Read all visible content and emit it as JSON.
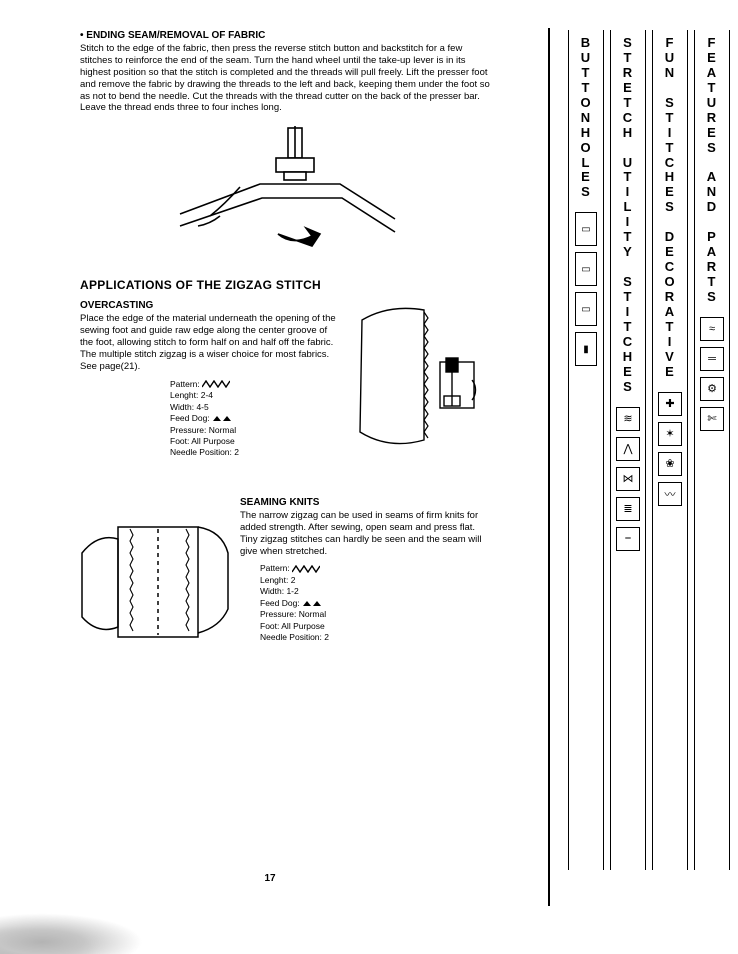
{
  "endingSeam": {
    "heading": "ENDING SEAM/REMOVAL OF FABRIC",
    "body": "Stitch to the edge of the fabric, then press the reverse stitch button and backstitch for a few stitches to reinforce the end of the seam. Turn the hand wheel until the take-up lever is in its highest position so that the stitch is completed and the threads will pull freely. Lift the presser foot and remove the fabric by drawing the threads to the left and back, keeping them under the foot so as not to bend the needle. Cut the threads with the thread cutter on the back of the presser bar. Leave the thread ends three to four inches long."
  },
  "zigzag": {
    "title": "APPLICATIONS OF THE ZIGZAG STITCH"
  },
  "overcasting": {
    "title": "OVERCASTING",
    "body": "Place the edge of the material underneath the opening of the sewing foot and guide raw edge along the center groove of the foot, allowing stitch to form half on and half off the fabric. The multiple stitch zigzag is a wiser choice for most fabrics. See page(21).",
    "settings": {
      "patternLabel": "Pattern:",
      "lengthLabel": "Lenght: 2-4",
      "widthLabel": "Width: 4-5",
      "feedDogLabel": "Feed Dog:",
      "pressureLabel": "Pressure: Normal",
      "footLabel": "Foot: All Purpose",
      "needleLabel": "Needle Position: 2"
    }
  },
  "seamingKnits": {
    "title": "SEAMING KNITS",
    "body": "The narrow zigzag can be used in seams of firm knits for added strength. After sewing, open seam and press flat. Tiny zigzag stitches can hardly be seen and the seam will give when stretched.",
    "settings": {
      "patternLabel": "Pattern:",
      "lengthLabel": "Lenght: 2",
      "widthLabel": "Width: 1-2",
      "feedDogLabel": "Feed Dog:",
      "pressureLabel": "Pressure: Normal",
      "footLabel": "Foot: All Purpose",
      "needleLabel": "Needle Position: 2"
    }
  },
  "pageNumber": "17",
  "tabs": [
    {
      "label": "B\nU\nT\nT\nO\nN\nH\nO\nL\nE\nS",
      "iconShape": "tall",
      "icons": [
        "▭",
        "▭",
        "▭",
        "▮"
      ]
    },
    {
      "label": "S\nT\nR\nE\nT\nC\nH\n \nU\nT\nI\nL\nI\nT\nY\n \nS\nT\nI\nT\nC\nH\nE\nS",
      "iconShape": "sq",
      "icons": [
        "≋",
        "⋀",
        "⋈",
        "≣",
        "⎯"
      ]
    },
    {
      "label": "F\nU\nN\n \nS\nT\nI\nT\nC\nH\nE\nS\n \nD\nE\nC\nO\nR\nA\nT\nI\nV\nE",
      "iconShape": "sq",
      "icons": [
        "✚",
        "✶",
        "❀",
        "〰"
      ]
    },
    {
      "label": "F\nE\nA\nT\nU\nR\nE\nS\n \nA\nN\nD\n \nP\nA\nR\nT\nS",
      "iconShape": "sq",
      "icons": [
        "≈",
        "═",
        "⚙",
        "✄"
      ]
    }
  ],
  "colors": {
    "ink": "#000000",
    "paper": "#ffffff"
  }
}
